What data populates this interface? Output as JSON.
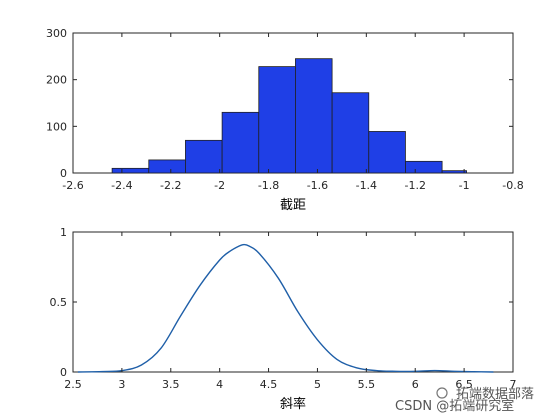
{
  "chart_data": [
    {
      "type": "bar",
      "subtype": "histogram",
      "xlabel": "截距",
      "ylabel": "",
      "xlim": [
        -2.6,
        -0.8
      ],
      "ylim": [
        0,
        300
      ],
      "x_ticks": [
        -2.6,
        -2.4,
        -2.2,
        -2,
        -1.8,
        -1.6,
        -1.4,
        -1.2,
        -1,
        -0.8
      ],
      "x_tick_labels": [
        "-2.6",
        "-2.4",
        "-2.2",
        "-2",
        "-1.8",
        "-1.6",
        "-1.4",
        "-1.2",
        "-1",
        "-0.8"
      ],
      "y_ticks": [
        0,
        100,
        200,
        300
      ],
      "y_tick_labels": [
        "0",
        "100",
        "200",
        "300"
      ],
      "bin_edges": [
        -2.44,
        -2.29,
        -2.14,
        -1.99,
        -1.84,
        -1.69,
        -1.54,
        -1.39,
        -1.24,
        -1.09,
        -0.99
      ],
      "values": [
        10,
        28,
        70,
        130,
        228,
        245,
        172,
        89,
        25,
        5
      ],
      "bar_color": "#1f3fe6",
      "edge_color": "#202020",
      "grid": false
    },
    {
      "type": "line",
      "subtype": "density",
      "xlabel": "斜率",
      "ylabel": "",
      "xlim": [
        2.5,
        7
      ],
      "ylim": [
        0,
        1
      ],
      "x_ticks": [
        2.5,
        3,
        3.5,
        4,
        4.5,
        5,
        5.5,
        6,
        6.5,
        7
      ],
      "x_tick_labels": [
        "2.5",
        "3",
        "3.5",
        "4",
        "4.5",
        "5",
        "5.5",
        "6",
        "6.5",
        "7"
      ],
      "y_ticks": [
        0,
        0.5,
        1
      ],
      "y_tick_labels": [
        "0",
        "0.5",
        "1"
      ],
      "series": [
        {
          "color": "#1f5fa8",
          "x": [
            2.55,
            2.8,
            3.0,
            3.2,
            3.4,
            3.6,
            3.8,
            4.0,
            4.1,
            4.2,
            4.25,
            4.3,
            4.4,
            4.6,
            4.8,
            5.0,
            5.2,
            5.4,
            5.6,
            5.8,
            6.0,
            6.2,
            6.4,
            6.6,
            6.8
          ],
          "y": [
            0.0,
            0.003,
            0.01,
            0.05,
            0.17,
            0.4,
            0.62,
            0.8,
            0.86,
            0.9,
            0.91,
            0.9,
            0.85,
            0.67,
            0.43,
            0.23,
            0.09,
            0.03,
            0.01,
            0.005,
            0.005,
            0.01,
            0.005,
            0.002,
            0.0
          ]
        }
      ],
      "grid": false
    }
  ],
  "watermark": {
    "line1": "拓端数据部落",
    "line2": "CSDN @拓端研究室"
  }
}
